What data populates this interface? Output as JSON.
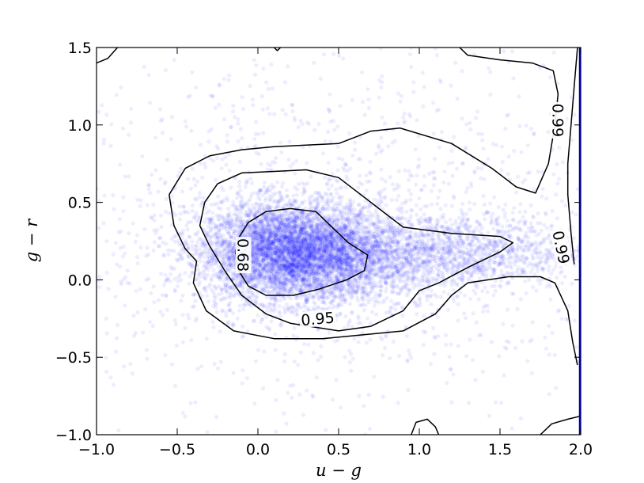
{
  "chart_data": {
    "type": "scatter",
    "title": "",
    "xlabel": "u − g",
    "ylabel": "g − r",
    "xlim": [
      -1.0,
      2.0
    ],
    "ylim": [
      -1.0,
      1.5
    ],
    "x_ticks": [
      -1.0,
      -0.5,
      0.0,
      0.5,
      1.0,
      1.5,
      2.0
    ],
    "x_tick_labels": [
      "−1.0",
      "−0.5",
      "0.0",
      "0.5",
      "1.0",
      "1.5",
      "2.0"
    ],
    "y_ticks": [
      -1.0,
      -0.5,
      0.0,
      0.5,
      1.0,
      1.5
    ],
    "y_tick_labels": [
      "−1.0",
      "−0.5",
      "0.0",
      "0.5",
      "1.0",
      "1.5"
    ],
    "grid": false,
    "point_color": "#0000ff",
    "contour_color": "#000000",
    "density_clusters": [
      {
        "center": [
          0.2,
          0.18
        ],
        "spread": [
          0.28,
          0.16
        ],
        "weight": 0.55
      },
      {
        "center": [
          0.6,
          0.15
        ],
        "spread": [
          0.35,
          0.14
        ],
        "weight": 0.15
      },
      {
        "center": [
          1.25,
          0.18
        ],
        "spread": [
          0.4,
          0.12
        ],
        "weight": 0.12
      },
      {
        "center": [
          0.5,
          0.3
        ],
        "spread": [
          1.0,
          0.6
        ],
        "weight": 0.18
      }
    ],
    "contours": [
      {
        "level": "0.68",
        "points": [
          [
            -0.12,
            0.27
          ],
          [
            -0.06,
            0.37
          ],
          [
            0.05,
            0.44
          ],
          [
            0.2,
            0.46
          ],
          [
            0.36,
            0.44
          ],
          [
            0.46,
            0.34
          ],
          [
            0.56,
            0.24
          ],
          [
            0.68,
            0.16
          ],
          [
            0.66,
            0.06
          ],
          [
            0.55,
            0.0
          ],
          [
            0.38,
            -0.06
          ],
          [
            0.22,
            -0.1
          ],
          [
            0.05,
            -0.1
          ],
          [
            -0.06,
            -0.04
          ],
          [
            -0.12,
            0.06
          ],
          [
            -0.14,
            0.18
          ],
          [
            -0.12,
            0.27
          ]
        ],
        "label_at": [
          -0.09,
          0.16
        ],
        "label_rotation": 90
      },
      {
        "level": "0.95",
        "points": [
          [
            -0.33,
            0.5
          ],
          [
            -0.25,
            0.62
          ],
          [
            -0.1,
            0.69
          ],
          [
            0.1,
            0.7
          ],
          [
            0.3,
            0.71
          ],
          [
            0.5,
            0.66
          ],
          [
            0.7,
            0.5
          ],
          [
            0.9,
            0.34
          ],
          [
            1.2,
            0.3
          ],
          [
            1.5,
            0.28
          ],
          [
            1.58,
            0.24
          ],
          [
            1.5,
            0.18
          ],
          [
            1.3,
            0.08
          ],
          [
            1.12,
            -0.02
          ],
          [
            1.0,
            -0.07
          ],
          [
            0.9,
            -0.2
          ],
          [
            0.7,
            -0.3
          ],
          [
            0.5,
            -0.33
          ],
          [
            0.2,
            -0.28
          ],
          [
            0.05,
            -0.22
          ],
          [
            -0.1,
            -0.1
          ],
          [
            -0.2,
            0.05
          ],
          [
            -0.3,
            0.22
          ],
          [
            -0.36,
            0.35
          ],
          [
            -0.33,
            0.5
          ]
        ],
        "label_at": [
          0.37,
          -0.25
        ],
        "label_rotation": -5
      },
      {
        "level": "0.99",
        "points": [
          [
            -0.55,
            0.55
          ],
          [
            -0.45,
            0.72
          ],
          [
            -0.3,
            0.8
          ],
          [
            -0.1,
            0.84
          ],
          [
            0.1,
            0.86
          ],
          [
            0.3,
            0.87
          ],
          [
            0.5,
            0.88
          ],
          [
            0.7,
            0.96
          ],
          [
            0.88,
            0.98
          ],
          [
            1.2,
            0.88
          ],
          [
            1.45,
            0.72
          ],
          [
            1.6,
            0.6
          ],
          [
            1.72,
            0.56
          ],
          [
            1.8,
            0.75
          ],
          [
            1.84,
            1.0
          ],
          [
            1.86,
            1.2
          ],
          [
            1.83,
            1.35
          ],
          [
            1.7,
            1.4
          ],
          [
            1.5,
            1.42
          ],
          [
            1.3,
            1.45
          ],
          [
            1.25,
            1.5
          ]
        ],
        "label_at": [
          1.86,
          1.03
        ],
        "label_rotation": 90
      },
      {
        "level": "0.99",
        "points": [
          [
            -0.55,
            0.55
          ],
          [
            -0.52,
            0.35
          ],
          [
            -0.45,
            0.2
          ],
          [
            -0.38,
            0.12
          ],
          [
            -0.4,
            -0.02
          ],
          [
            -0.32,
            -0.2
          ],
          [
            -0.15,
            -0.33
          ],
          [
            0.1,
            -0.38
          ],
          [
            0.4,
            -0.38
          ],
          [
            0.7,
            -0.35
          ],
          [
            0.9,
            -0.33
          ],
          [
            1.1,
            -0.22
          ],
          [
            1.2,
            -0.1
          ],
          [
            1.3,
            -0.02
          ],
          [
            1.55,
            0.02
          ],
          [
            1.75,
            0.02
          ],
          [
            1.84,
            -0.02
          ],
          [
            1.92,
            -0.2
          ],
          [
            1.95,
            -0.4
          ],
          [
            1.98,
            -0.55
          ]
        ],
        "label_at": [
          1.88,
          0.21
        ],
        "label_rotation": 78
      },
      {
        "level": "",
        "points": [
          [
            1.98,
            1.5
          ],
          [
            1.96,
            1.25
          ],
          [
            1.94,
            1.0
          ],
          [
            1.92,
            0.75
          ],
          [
            1.92,
            0.55
          ],
          [
            1.94,
            0.3
          ],
          [
            1.96,
            0.1
          ]
        ],
        "label_at": null,
        "label_rotation": 0
      },
      {
        "level": "",
        "points": [
          [
            -1.0,
            1.4
          ],
          [
            -0.93,
            1.43
          ],
          [
            -0.87,
            1.5
          ]
        ],
        "label_at": null,
        "label_rotation": 0
      },
      {
        "level": "",
        "points": [
          [
            0.1,
            1.5
          ],
          [
            0.12,
            1.48
          ],
          [
            0.14,
            1.5
          ]
        ],
        "label_at": null,
        "label_rotation": 0
      },
      {
        "level": "",
        "points": [
          [
            0.95,
            -1.0
          ],
          [
            0.98,
            -0.92
          ],
          [
            1.05,
            -0.9
          ],
          [
            1.1,
            -0.95
          ],
          [
            1.12,
            -1.0
          ]
        ],
        "label_at": null,
        "label_rotation": 0
      },
      {
        "level": "",
        "points": [
          [
            1.75,
            -1.0
          ],
          [
            1.82,
            -0.93
          ],
          [
            1.92,
            -0.9
          ],
          [
            2.0,
            -0.88
          ]
        ],
        "label_at": null,
        "label_rotation": 0
      }
    ]
  }
}
